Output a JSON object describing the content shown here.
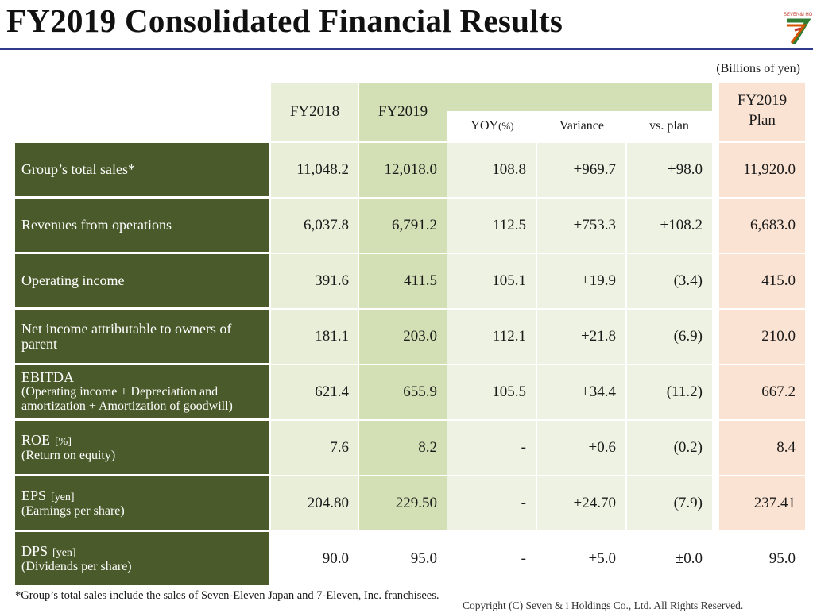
{
  "title": "FY2019 Consolidated Financial Results",
  "logo_text": "SEVEN&i HOLDINGS",
  "unit_note": "(Billions of yen)",
  "headers": {
    "fy2018": "FY2018",
    "fy2019": "FY2019",
    "yoy": "YOY",
    "yoy_unit": "(%)",
    "variance": "Variance",
    "vs_plan": "vs. plan",
    "plan_line1": "FY2019",
    "plan_line2": "Plan"
  },
  "rows": [
    {
      "label": "Group’s total sales*",
      "sub": "",
      "unit": "",
      "fy2018": "11,048.2",
      "fy2019": "12,018.0",
      "yoy": "108.8",
      "variance": "+969.7",
      "vs_plan": "+98.0",
      "plan": "11,920.0"
    },
    {
      "label": "Revenues from operations",
      "sub": "",
      "unit": "",
      "fy2018": "6,037.8",
      "fy2019": "6,791.2",
      "yoy": "112.5",
      "variance": "+753.3",
      "vs_plan": "+108.2",
      "plan": "6,683.0"
    },
    {
      "label": "Operating income",
      "sub": "",
      "unit": "",
      "fy2018": "391.6",
      "fy2019": "411.5",
      "yoy": "105.1",
      "variance": "+19.9",
      "vs_plan": "(3.4)",
      "plan": "415.0"
    },
    {
      "label": "Net income attributable to owners of parent",
      "sub": "",
      "unit": "",
      "fy2018": "181.1",
      "fy2019": "203.0",
      "yoy": "112.1",
      "variance": "+21.8",
      "vs_plan": "(6.9)",
      "plan": "210.0"
    },
    {
      "label": "EBITDA",
      "sub": "(Operating income + Depreciation and amortization + Amortization of goodwill)",
      "unit": "",
      "fy2018": "621.4",
      "fy2019": "655.9",
      "yoy": "105.5",
      "variance": "+34.4",
      "vs_plan": "(11.2)",
      "plan": "667.2"
    },
    {
      "label": "ROE",
      "sub": "(Return on equity)",
      "unit": "[%]",
      "fy2018": "7.6",
      "fy2019": "8.2",
      "yoy": "-",
      "variance": "+0.6",
      "vs_plan": "(0.2)",
      "plan": "8.4"
    },
    {
      "label": "EPS",
      "sub": "(Earnings per share)",
      "unit": "[yen]",
      "fy2018": "204.80",
      "fy2019": "229.50",
      "yoy": "-",
      "variance": "+24.70",
      "vs_plan": "(7.9)",
      "plan": "237.41"
    },
    {
      "label": "DPS",
      "sub": "(Dividends per share)",
      "unit": "[yen]",
      "fy2018": "90.0",
      "fy2019": "95.0",
      "yoy": "-",
      "variance": "+5.0",
      "vs_plan": "±0.0",
      "plan": "95.0"
    }
  ],
  "footnote": "*Group’s total sales include the sales of Seven-Eleven Japan and 7-Eleven, Inc. franchisees.",
  "copyright": "Copyright (C)  Seven & i Holdings Co., Ltd.  All Rights Reserved.",
  "colors": {
    "label_bg": "#4a5a2a",
    "fy2018_bg": "#e9eed8",
    "fy2019_bg": "#d3dfb4",
    "yoy_bg": "#eef2e2",
    "plan_bg": "#fbe3d3",
    "title_rule": "#2f3a8c"
  }
}
